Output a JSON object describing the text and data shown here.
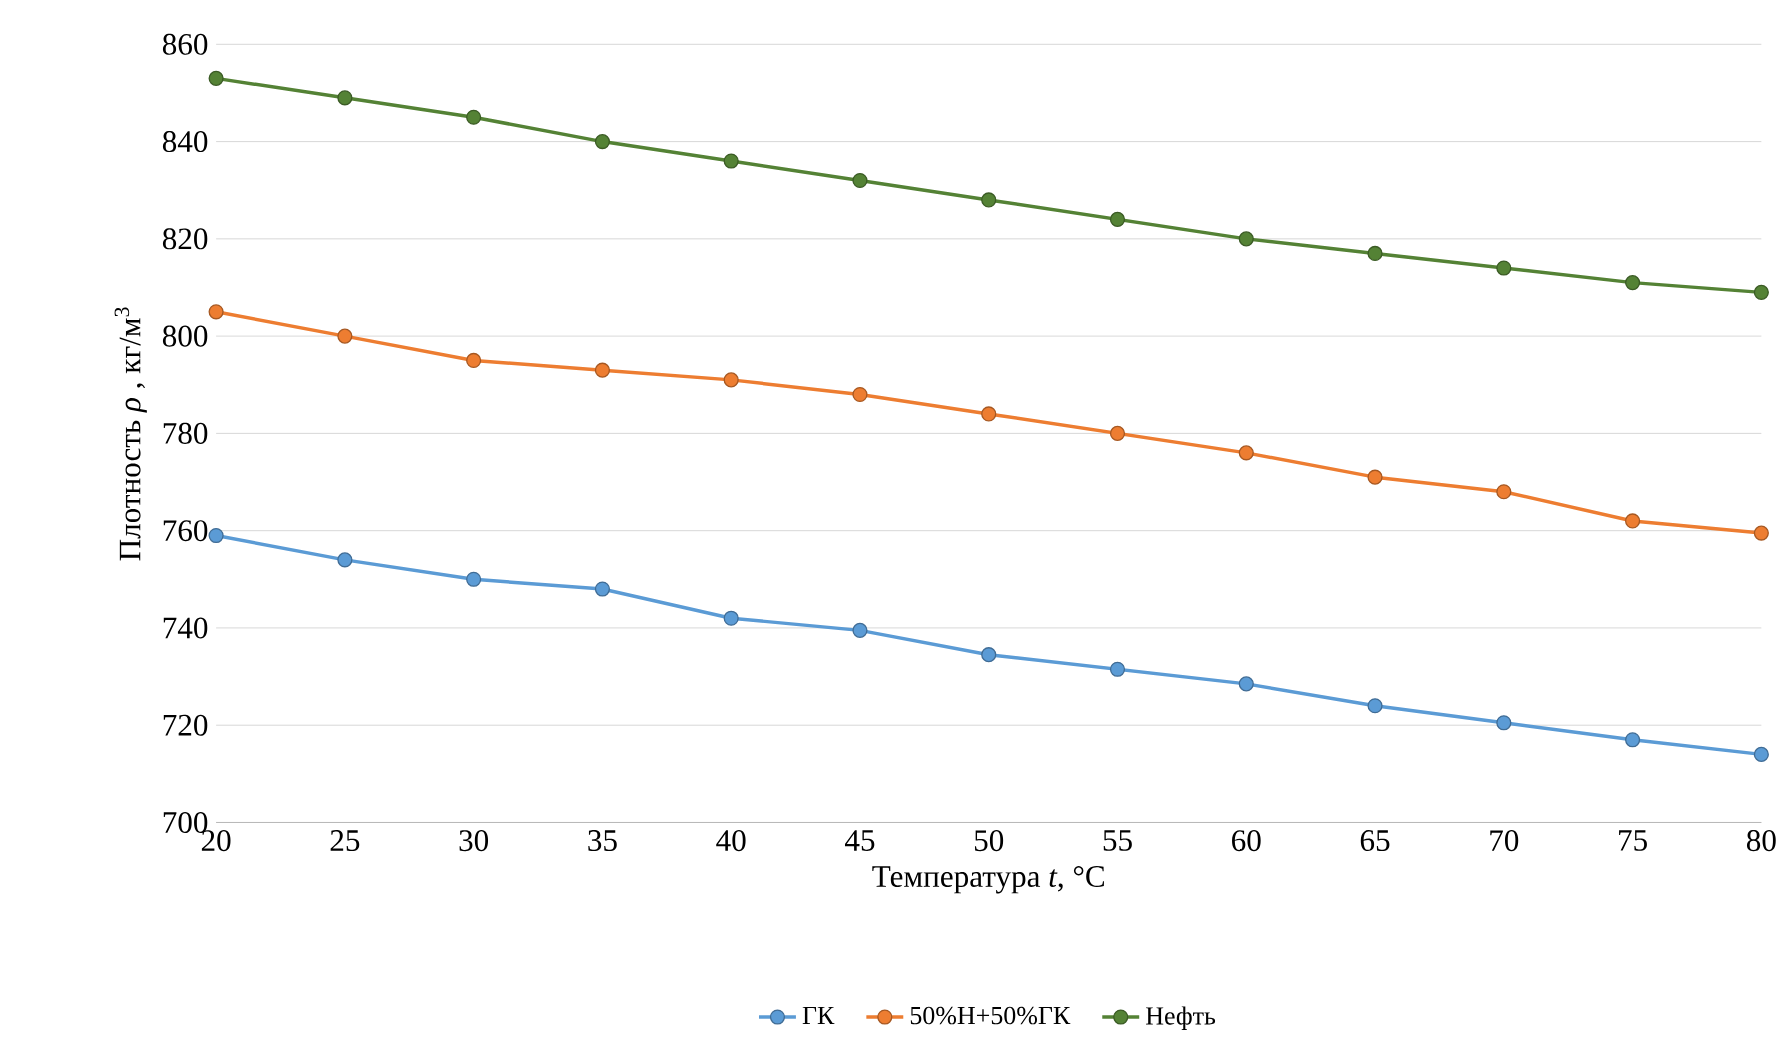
{
  "chart_data": {
    "type": "line",
    "xlabel": "Температура *t*, °C",
    "ylabel": "Плотность *ρ* , кг/м$^{3}$",
    "x": [
      20,
      25,
      30,
      35,
      40,
      45,
      50,
      55,
      60,
      65,
      70,
      75,
      80
    ],
    "series": [
      {
        "name": "ГК",
        "color": "#5b9bd5",
        "values": [
          759,
          754,
          750,
          748,
          742,
          739.5,
          734.5,
          731.5,
          728.5,
          724,
          720.5,
          717,
          714
        ]
      },
      {
        "name": "50%Н+50%ГК",
        "color": "#ed7d31",
        "values": [
          805,
          800,
          795,
          793,
          791,
          788,
          784,
          780,
          776,
          771,
          768,
          762,
          759.5
        ]
      },
      {
        "name": "Нефть",
        "color": "#548235",
        "values": [
          853,
          849,
          845,
          840,
          836,
          832,
          828,
          824,
          820,
          817,
          814,
          811,
          809
        ]
      }
    ],
    "xlim": [
      20,
      80
    ],
    "ylim": [
      700,
      860
    ],
    "xticks": [
      20,
      25,
      30,
      35,
      40,
      45,
      50,
      55,
      60,
      65,
      70,
      75,
      80
    ],
    "yticks": [
      700,
      720,
      740,
      760,
      780,
      800,
      820,
      840,
      860
    ],
    "grid": "y",
    "legend": "bottom",
    "marker": "circle",
    "line_style": "solid"
  }
}
